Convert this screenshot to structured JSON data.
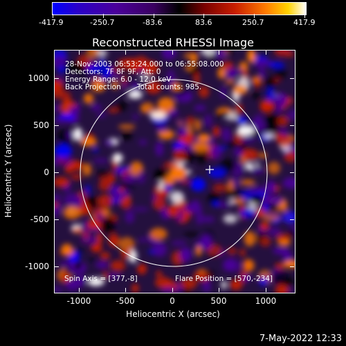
{
  "colorbar": {
    "tick_labels": [
      "-417.9",
      "-250.7",
      "-83.6",
      "83.6",
      "250.7",
      "417.9"
    ],
    "colors": [
      "#0000ff",
      "#4a009a",
      "#000000",
      "#c81e00",
      "#ff7a00",
      "#ffffff"
    ]
  },
  "title": "Reconstructed RHESSI Image",
  "info": {
    "time_range": "28-Nov-2003 06:53:24.000 to 06:55:08.000",
    "detectors": "Detectors: 7F 8F 9F, Att: 0",
    "energy_range": "Energy Range: 6.0 - 12.0 keV",
    "method": "Back Projection",
    "total_counts": "Total counts: 985.",
    "spin_axis": "Spin Axis = [377,-8]",
    "flare_position": "Flare Position = [570,-234]"
  },
  "axes": {
    "xlabel": "Heliocentric X (arcsec)",
    "ylabel": "Heliocentric Y (arcsec)",
    "x_ticks": [
      "-1000",
      "-500",
      "0",
      "500",
      "1000"
    ],
    "y_ticks": [
      "1000",
      "500",
      "0",
      "-500",
      "-1000"
    ],
    "xlim": [
      -1300,
      1300
    ],
    "ylim": [
      -1300,
      1300
    ]
  },
  "timestamp": "7-May-2022 12:33"
}
